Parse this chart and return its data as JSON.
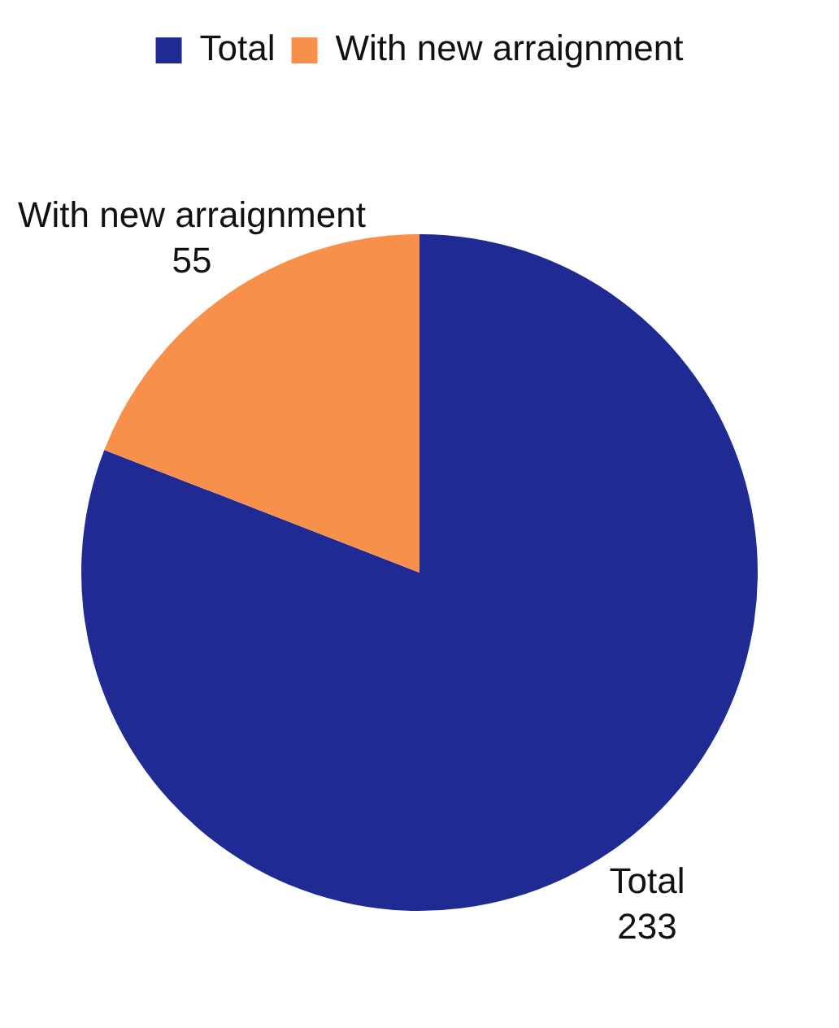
{
  "chart_data": {
    "type": "pie",
    "categories": [
      "Total",
      "With new arraignment"
    ],
    "values": [
      233,
      55
    ],
    "colors": [
      "#1f2a93",
      "#f7904a"
    ],
    "data_labels": true,
    "legend": "top"
  }
}
